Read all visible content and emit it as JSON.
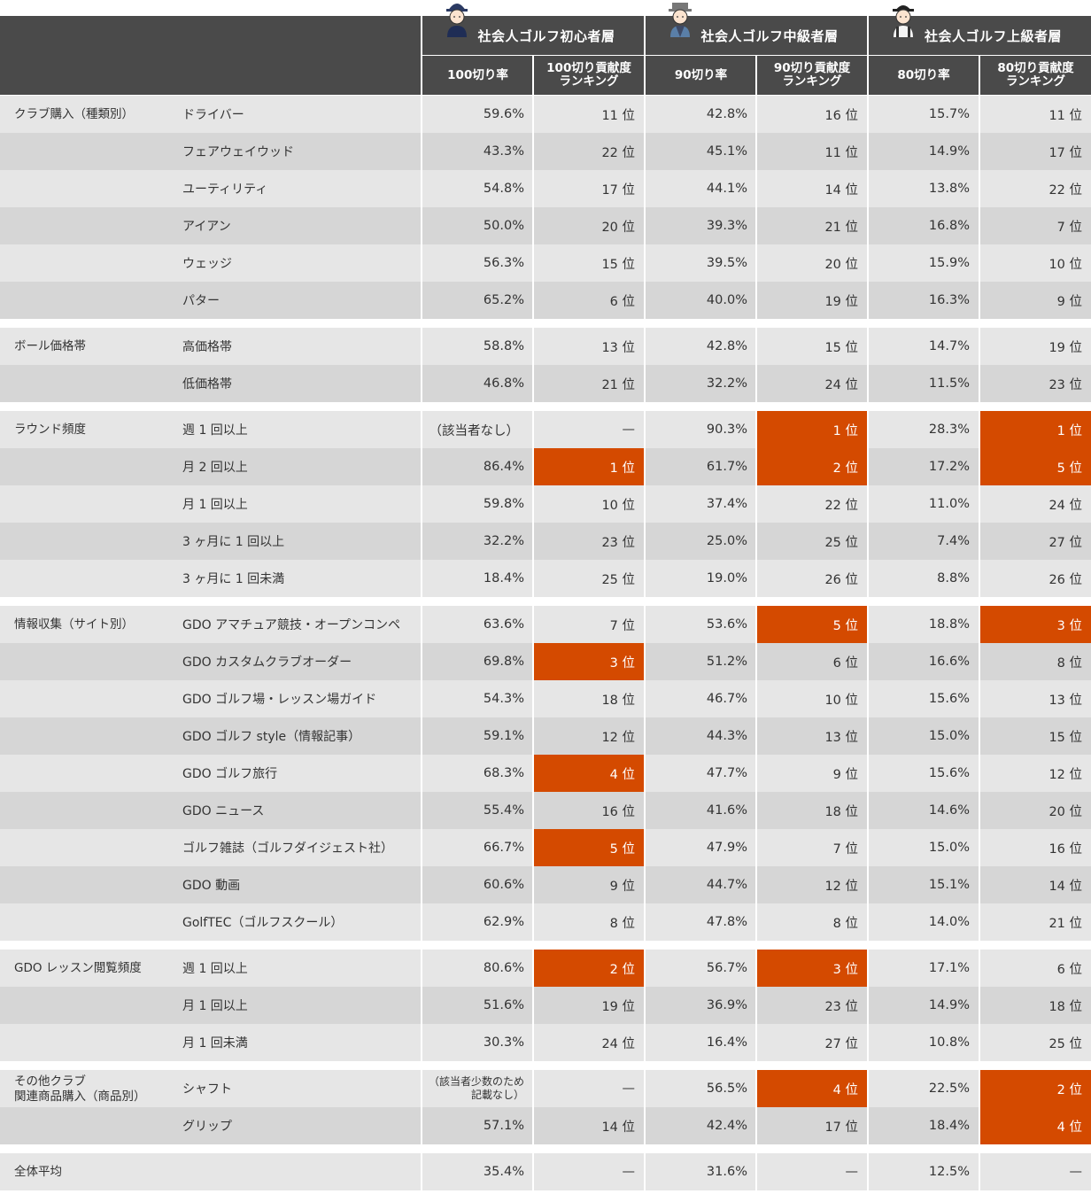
{
  "groups": [
    {
      "title": "社会人ゴルフ初心者層"
    },
    {
      "title": "社会人ゴルフ中級者層"
    },
    {
      "title": "社会人ゴルフ上級者層"
    }
  ],
  "subheaders": [
    {
      "line1": "100切り率",
      "line2": ""
    },
    {
      "line1": "100切り貢献度",
      "line2": "ランキング"
    },
    {
      "line1": "90切り率",
      "line2": ""
    },
    {
      "line1": "90切り貢献度",
      "line2": "ランキング"
    },
    {
      "line1": "80切り率",
      "line2": ""
    },
    {
      "line1": "80切り貢献度",
      "line2": "ランキング"
    }
  ],
  "colors": {
    "header_bg": "#4a4a4a",
    "highlight": "#d44a00",
    "row_light": "#e6e6e6",
    "row_dark": "#d6d6d6"
  },
  "sections": [
    {
      "category": "クラブ購入（種類別）",
      "rows": [
        {
          "item": "ドライバー",
          "v": [
            "59.6%",
            "11 位",
            "42.8%",
            "16 位",
            "15.7%",
            "11 位"
          ],
          "hl": []
        },
        {
          "item": "フェアウェイウッド",
          "v": [
            "43.3%",
            "22 位",
            "45.1%",
            "11 位",
            "14.9%",
            "17 位"
          ],
          "hl": []
        },
        {
          "item": "ユーティリティ",
          "v": [
            "54.8%",
            "17 位",
            "44.1%",
            "14 位",
            "13.8%",
            "22 位"
          ],
          "hl": []
        },
        {
          "item": "アイアン",
          "v": [
            "50.0%",
            "20 位",
            "39.3%",
            "21 位",
            "16.8%",
            "7 位"
          ],
          "hl": []
        },
        {
          "item": "ウェッジ",
          "v": [
            "56.3%",
            "15 位",
            "39.5%",
            "20 位",
            "15.9%",
            "10 位"
          ],
          "hl": []
        },
        {
          "item": "パター",
          "v": [
            "65.2%",
            "6 位",
            "40.0%",
            "19 位",
            "16.3%",
            "9 位"
          ],
          "hl": []
        }
      ]
    },
    {
      "category": "ボール価格帯",
      "rows": [
        {
          "item": "高価格帯",
          "v": [
            "58.8%",
            "13 位",
            "42.8%",
            "15 位",
            "14.7%",
            "19 位"
          ],
          "hl": []
        },
        {
          "item": "低価格帯",
          "v": [
            "46.8%",
            "21 位",
            "32.2%",
            "24 位",
            "11.5%",
            "23 位"
          ],
          "hl": []
        }
      ]
    },
    {
      "category": "ラウンド頻度",
      "rows": [
        {
          "item": "週 1 回以上",
          "v": [
            "（該当者なし）",
            "—",
            "90.3%",
            "1 位",
            "28.3%",
            "1 位"
          ],
          "hl": [
            3,
            5
          ]
        },
        {
          "item": "月 2 回以上",
          "v": [
            "86.4%",
            "1 位",
            "61.7%",
            "2 位",
            "17.2%",
            "5 位"
          ],
          "hl": [
            1,
            3,
            5
          ]
        },
        {
          "item": "月 1 回以上",
          "v": [
            "59.8%",
            "10 位",
            "37.4%",
            "22 位",
            "11.0%",
            "24 位"
          ],
          "hl": []
        },
        {
          "item": "3 ヶ月に 1 回以上",
          "v": [
            "32.2%",
            "23 位",
            "25.0%",
            "25 位",
            "7.4%",
            "27 位"
          ],
          "hl": []
        },
        {
          "item": "3 ヶ月に 1 回未満",
          "v": [
            "18.4%",
            "25 位",
            "19.0%",
            "26 位",
            "8.8%",
            "26 位"
          ],
          "hl": []
        }
      ]
    },
    {
      "category": "情報収集（サイト別）",
      "rows": [
        {
          "item": "GDO アマチュア競技・オープンコンペ",
          "v": [
            "63.6%",
            "7 位",
            "53.6%",
            "5 位",
            "18.8%",
            "3 位"
          ],
          "hl": [
            3,
            5
          ]
        },
        {
          "item": "GDO カスタムクラブオーダー",
          "v": [
            "69.8%",
            "3 位",
            "51.2%",
            "6 位",
            "16.6%",
            "8 位"
          ],
          "hl": [
            1
          ]
        },
        {
          "item": "GDO ゴルフ場・レッスン場ガイド",
          "v": [
            "54.3%",
            "18 位",
            "46.7%",
            "10 位",
            "15.6%",
            "13 位"
          ],
          "hl": []
        },
        {
          "item": "GDO ゴルフ style（情報記事）",
          "v": [
            "59.1%",
            "12 位",
            "44.3%",
            "13 位",
            "15.0%",
            "15 位"
          ],
          "hl": []
        },
        {
          "item": "GDO ゴルフ旅行",
          "v": [
            "68.3%",
            "4 位",
            "47.7%",
            "9 位",
            "15.6%",
            "12 位"
          ],
          "hl": [
            1
          ]
        },
        {
          "item": "GDO ニュース",
          "v": [
            "55.4%",
            "16 位",
            "41.6%",
            "18 位",
            "14.6%",
            "20 位"
          ],
          "hl": []
        },
        {
          "item": "ゴルフ雑誌（ゴルフダイジェスト社）",
          "v": [
            "66.7%",
            "5 位",
            "47.9%",
            "7 位",
            "15.0%",
            "16 位"
          ],
          "hl": [
            1
          ]
        },
        {
          "item": "GDO 動画",
          "v": [
            "60.6%",
            "9 位",
            "44.7%",
            "12 位",
            "15.1%",
            "14 位"
          ],
          "hl": []
        },
        {
          "item": "GolfTEC（ゴルフスクール）",
          "v": [
            "62.9%",
            "8 位",
            "47.8%",
            "8 位",
            "14.0%",
            "21 位"
          ],
          "hl": []
        }
      ]
    },
    {
      "category": "GDO レッスン閲覧頻度",
      "rows": [
        {
          "item": "週 1 回以上",
          "v": [
            "80.6%",
            "2 位",
            "56.7%",
            "3 位",
            "17.1%",
            "6 位"
          ],
          "hl": [
            1,
            3
          ]
        },
        {
          "item": "月 1 回以上",
          "v": [
            "51.6%",
            "19 位",
            "36.9%",
            "23 位",
            "14.9%",
            "18 位"
          ],
          "hl": []
        },
        {
          "item": "月 1 回未満",
          "v": [
            "30.3%",
            "24 位",
            "16.4%",
            "27 位",
            "10.8%",
            "25 位"
          ],
          "hl": []
        }
      ]
    },
    {
      "category": "その他クラブ\n関連商品購入（商品別）",
      "rows": [
        {
          "item": "シャフト",
          "v": [
            "（該当者少数のため\n記載なし）",
            "—",
            "56.5%",
            "4 位",
            "22.5%",
            "2 位"
          ],
          "hl": [
            3,
            5
          ],
          "small0": true
        },
        {
          "item": "グリップ",
          "v": [
            "57.1%",
            "14 位",
            "42.4%",
            "17 位",
            "18.4%",
            "4 位"
          ],
          "hl": [
            5
          ]
        }
      ]
    },
    {
      "category": "全体平均",
      "rows": [
        {
          "item": "",
          "v": [
            "35.4%",
            "—",
            "31.6%",
            "—",
            "12.5%",
            "—"
          ],
          "hl": []
        }
      ]
    }
  ]
}
